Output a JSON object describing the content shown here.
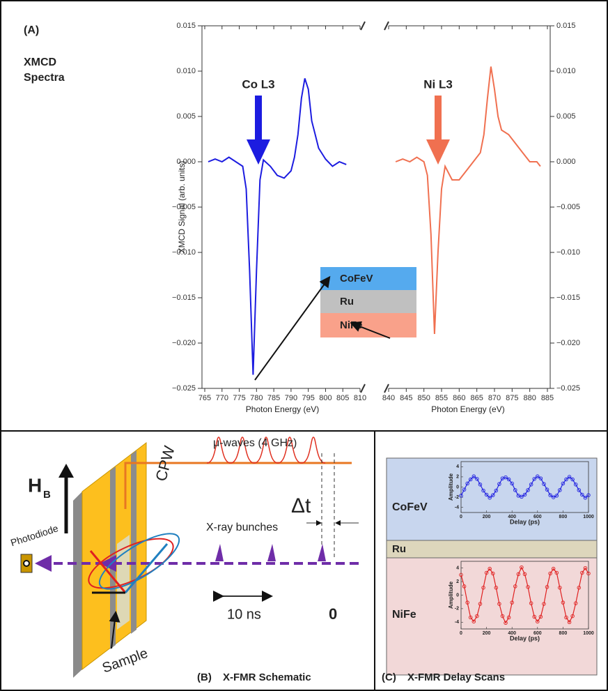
{
  "panel_a": {
    "label": "(A)",
    "title_lines": [
      "XMCD",
      "Spectra"
    ]
  },
  "layers": [
    "CoFeV",
    "Ru",
    "NiFe"
  ],
  "panel_b": {
    "label": "(B)",
    "title": "X-FMR Schematic",
    "microwaves": "μ-waves (4 GHz)",
    "field": "H",
    "field_sub": "B",
    "delay": "Δt",
    "waveguide": "CPW",
    "xray": "X-ray bunches",
    "detector": "Photodiode",
    "period": "10 ns",
    "zero": "0",
    "sample": "Sample"
  },
  "panel_c": {
    "label": "(C)",
    "title": "X-FMR Delay Scans",
    "spacer": "Ru"
  },
  "chart_data": [
    {
      "type": "line",
      "ylabel": "XMCD Signal (arb. units)",
      "xlabel": "Photon Energy (eV)",
      "ylim": [
        -0.025,
        0.015
      ],
      "yticks": [
        {
          "value": 0.015,
          "label": "0.015"
        },
        {
          "value": 0.01,
          "label": "0.010"
        },
        {
          "value": 0.005,
          "label": "0.005"
        },
        {
          "value": 0,
          "label": "0.000"
        },
        {
          "value": -0.005,
          "label": "−0.005"
        },
        {
          "value": -0.01,
          "label": "−0.010"
        },
        {
          "value": -0.015,
          "label": "−0.015"
        },
        {
          "value": -0.02,
          "label": "−0.020"
        },
        {
          "value": -0.025,
          "label": "−0.025"
        }
      ],
      "xlim": [
        765,
        810
      ],
      "xticks": [
        765,
        770,
        775,
        780,
        785,
        790,
        795,
        800,
        805,
        810
      ],
      "x2lim": [
        840,
        885
      ],
      "x2ticks": [
        840,
        845,
        850,
        855,
        860,
        865,
        870,
        875,
        880,
        885
      ],
      "series": [
        {
          "name": "Co L3",
          "color": "#1c1ce0",
          "x": [
            766,
            768,
            770,
            772,
            774,
            776,
            777,
            778,
            779,
            780,
            781,
            782,
            784,
            786,
            788,
            790,
            791,
            792,
            793,
            794,
            795,
            796,
            797,
            798,
            800,
            802,
            804,
            806
          ],
          "values": [
            0.0,
            0.0003,
            0.0,
            0.0005,
            0.0,
            -0.0005,
            -0.003,
            -0.012,
            -0.0235,
            -0.012,
            -0.002,
            0.0002,
            -0.0005,
            -0.0015,
            -0.0018,
            -0.001,
            0.0005,
            0.003,
            0.007,
            0.0092,
            0.008,
            0.0045,
            0.003,
            0.0015,
            0.0003,
            -0.0005,
            0.0,
            -0.0003
          ]
        },
        {
          "name": "Ni L3",
          "color": "#f07050",
          "axis": "x2",
          "x": [
            842,
            844,
            846,
            848,
            850,
            851,
            852,
            853,
            854,
            855,
            856,
            858,
            860,
            862,
            864,
            866,
            867,
            868,
            869,
            870,
            871,
            872,
            874,
            876,
            878,
            880,
            882,
            883
          ],
          "values": [
            0.0,
            0.0003,
            0.0,
            0.0005,
            0.0,
            -0.0015,
            -0.008,
            -0.019,
            -0.01,
            -0.003,
            -0.0005,
            -0.002,
            -0.002,
            -0.001,
            0.0,
            0.001,
            0.003,
            0.007,
            0.0105,
            0.008,
            0.005,
            0.0035,
            0.003,
            0.002,
            0.001,
            0.0,
            0.0,
            -0.0005
          ]
        }
      ]
    },
    {
      "type": "line",
      "title": "CoFeV",
      "ylabel": "Amplitude",
      "xlabel": "Delay (ps)",
      "markers": true,
      "color": "#2020e0",
      "xlim": [
        0,
        1000
      ],
      "xticks": [
        0,
        200,
        400,
        600,
        800,
        1000
      ],
      "ylim": [
        -5,
        5
      ],
      "yticks": [
        4,
        2,
        0,
        -2,
        -4
      ],
      "x": [
        0,
        25,
        50,
        75,
        100,
        125,
        150,
        175,
        200,
        225,
        250,
        275,
        300,
        325,
        350,
        375,
        400,
        425,
        450,
        475,
        500,
        525,
        550,
        575,
        600,
        625,
        650,
        675,
        700,
        725,
        750,
        775,
        800,
        825,
        850,
        875,
        900,
        925,
        950,
        975,
        1000
      ],
      "values": [
        -1.7,
        -0.5,
        0.7,
        1.5,
        2.1,
        1.6,
        0.5,
        -0.7,
        -1.5,
        -2.1,
        -1.6,
        -0.7,
        0.6,
        1.7,
        1.9,
        1.5,
        0.7,
        -0.6,
        -1.7,
        -1.9,
        -1.5,
        -0.6,
        0.5,
        1.6,
        2.1,
        1.7,
        0.6,
        -0.5,
        -1.6,
        -2.0,
        -1.7,
        -0.6,
        0.7,
        1.5,
        2.0,
        1.5,
        0.5,
        -0.6,
        -1.5,
        -2.1,
        -1.6
      ]
    },
    {
      "type": "line",
      "title": "NiFe",
      "ylabel": "Amplitude",
      "xlabel": "Delay (ps)",
      "markers": true,
      "color": "#e02020",
      "xlim": [
        0,
        1000
      ],
      "xticks": [
        0,
        200,
        400,
        600,
        800,
        1000
      ],
      "ylim": [
        -5,
        5
      ],
      "yticks": [
        4,
        2,
        0,
        -2,
        -4
      ],
      "x": [
        0,
        25,
        50,
        75,
        100,
        125,
        150,
        175,
        200,
        225,
        250,
        275,
        300,
        325,
        350,
        375,
        400,
        425,
        450,
        475,
        500,
        525,
        550,
        575,
        600,
        625,
        650,
        675,
        700,
        725,
        750,
        775,
        800,
        825,
        850,
        875,
        900,
        925,
        950,
        975,
        1000
      ],
      "values": [
        3.0,
        1.3,
        -1.1,
        -3.3,
        -3.9,
        -3.1,
        -1.3,
        1.1,
        3.3,
        3.9,
        3.2,
        1.1,
        -1.3,
        -3.1,
        -4.1,
        -3.3,
        -1.1,
        1.3,
        3.1,
        4.1,
        3.1,
        1.2,
        -1.2,
        -3.2,
        -3.9,
        -3.2,
        -1.3,
        1.2,
        3.2,
        3.9,
        3.3,
        1.1,
        -1.1,
        -3.3,
        -4.0,
        -3.1,
        -1.2,
        1.1,
        3.3,
        4.0,
        3.2
      ]
    }
  ]
}
